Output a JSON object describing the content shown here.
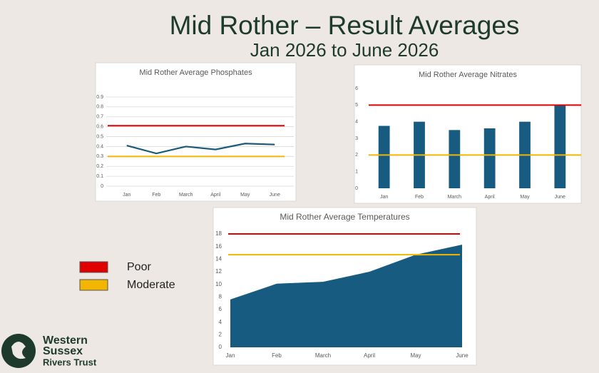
{
  "title": "Mid Rother – Result Averages",
  "subtitle": "Jan 2026 to June 2026",
  "legend": [
    {
      "label": "Poor",
      "color": "#e00000"
    },
    {
      "label": "Moderate",
      "color": "#f2b600"
    }
  ],
  "logo": [
    "Western",
    "Sussex",
    "Rivers Trust"
  ],
  "chart_data": [
    {
      "type": "line",
      "title": "Mid Rother Average Phosphates",
      "categories": [
        "Jan",
        "Feb",
        "March",
        "April",
        "May",
        "June"
      ],
      "values": [
        0.41,
        0.33,
        0.4,
        0.37,
        0.43,
        0.42
      ],
      "color": "#1b5a7a",
      "ylim": [
        0,
        0.9
      ],
      "yticks": [
        0,
        0.1,
        0.2,
        0.3,
        0.4,
        0.5,
        0.6,
        0.7,
        0.8,
        0.9
      ],
      "grid": true,
      "reference_lines": [
        {
          "value": 0.61,
          "color": "#e00000"
        },
        {
          "value": 0.3,
          "color": "#f2b600"
        }
      ]
    },
    {
      "type": "bar",
      "title": "Mid Rother Average Nitrates",
      "categories": [
        "Jan",
        "Feb",
        "March",
        "April",
        "May",
        "June"
      ],
      "values": [
        3.75,
        4.0,
        3.5,
        3.6,
        4.0,
        5.0
      ],
      "color": "#175c80",
      "ylim": [
        0,
        6
      ],
      "yticks": [
        0,
        1,
        2,
        3,
        4,
        5,
        6
      ],
      "grid": false,
      "reference_lines": [
        {
          "value": 5,
          "color": "#e00000"
        },
        {
          "value": 2,
          "color": "#f2b600"
        }
      ]
    },
    {
      "type": "area",
      "title": "Mid Rother Average Temperatures",
      "categories": [
        "Jan",
        "Feb",
        "March",
        "April",
        "May",
        "June"
      ],
      "values": [
        7.6,
        10.1,
        10.4,
        12.0,
        14.7,
        16.3
      ],
      "color": "#175c80",
      "ylim": [
        0,
        18
      ],
      "yticks": [
        0,
        2,
        4,
        6,
        8,
        10,
        12,
        14,
        16,
        18
      ],
      "grid": false,
      "reference_lines": [
        {
          "value": 18,
          "color": "#e00000"
        },
        {
          "value": 14.7,
          "color": "#f2b600"
        }
      ]
    }
  ]
}
